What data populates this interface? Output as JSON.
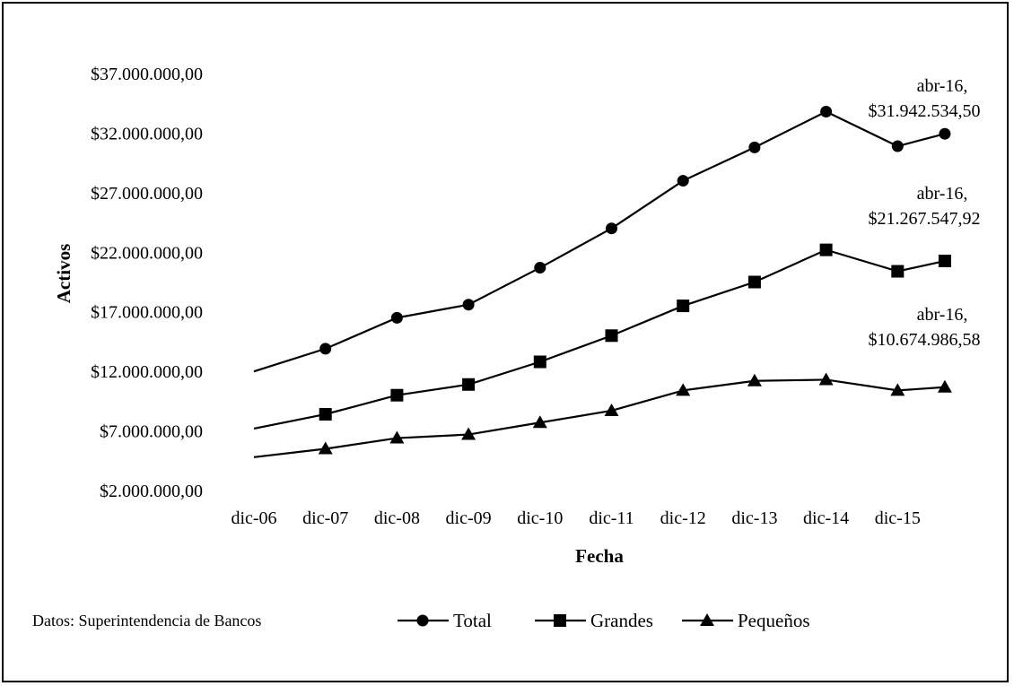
{
  "chart_data": {
    "type": "line",
    "xlabel": "Fecha",
    "ylabel": "Activos",
    "categories": [
      "dic-06",
      "dic-07",
      "dic-08",
      "dic-09",
      "dic-10",
      "dic-11",
      "dic-12",
      "dic-13",
      "dic-14",
      "dic-15"
    ],
    "x": [
      "dic-06",
      "dic-07",
      "dic-08",
      "dic-09",
      "dic-10",
      "dic-11",
      "dic-12",
      "dic-13",
      "dic-14",
      "dic-15",
      "abr-16"
    ],
    "ylim": [
      2000000,
      37000000
    ],
    "yticks": [
      2000000,
      7000000,
      12000000,
      17000000,
      22000000,
      27000000,
      32000000,
      37000000
    ],
    "ytick_labels": [
      "$2.000.000,00",
      "$7.000.000,00",
      "$12.000.000,00",
      "$17.000.000,00",
      "$22.000.000,00",
      "$27.000.000,00",
      "$32.000.000,00",
      "$37.000.000,00"
    ],
    "grid": false,
    "legend_position": "bottom",
    "series": [
      {
        "name": "Total",
        "marker": "circle",
        "values": [
          12000000,
          13900000,
          16500000,
          17600000,
          20700000,
          24000000,
          28000000,
          30800000,
          33800000,
          30900000,
          31942534.5
        ]
      },
      {
        "name": "Grandes",
        "marker": "square",
        "values": [
          7200000,
          8400000,
          10000000,
          10900000,
          12800000,
          15000000,
          17500000,
          19500000,
          22200000,
          20400000,
          21267547.92
        ]
      },
      {
        "name": "Pequeños",
        "marker": "triangle",
        "values": [
          4800000,
          5500000,
          6400000,
          6700000,
          7700000,
          8700000,
          10400000,
          11200000,
          11300000,
          10400000,
          10674986.58
        ]
      }
    ],
    "annotations": [
      {
        "line1": "abr-16,",
        "line2": "$31.942.534,50",
        "series": "Total"
      },
      {
        "line1": "abr-16,",
        "line2": "$21.267.547,92",
        "series": "Grandes"
      },
      {
        "line1": "abr-16,",
        "line2": "$10.674.986,58",
        "series": "Pequeños"
      }
    ]
  },
  "source_note": "Datos: Superintendencia de Bancos"
}
